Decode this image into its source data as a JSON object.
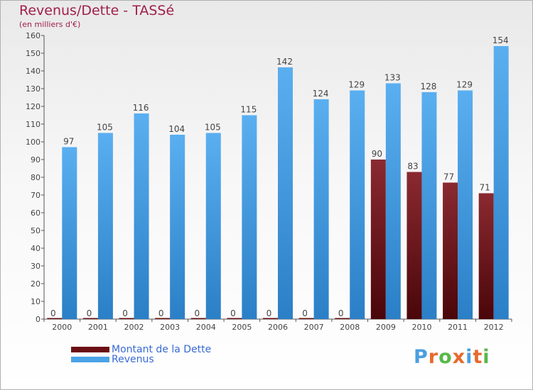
{
  "chart_data": {
    "type": "bar",
    "title": "Revenus/Dette - TASSé",
    "subtitle": "(en milliers d'€)",
    "categories": [
      "2000",
      "2001",
      "2002",
      "2003",
      "2004",
      "2005",
      "2006",
      "2007",
      "2008",
      "2009",
      "2010",
      "2011",
      "2012"
    ],
    "series": [
      {
        "name": "Montant de la Dette",
        "color": "#6b0f14",
        "values": [
          0,
          0,
          0,
          0,
          0,
          0,
          0,
          0,
          0,
          90,
          83,
          77,
          71
        ]
      },
      {
        "name": "Revenus",
        "color": "#4aa3e6",
        "values": [
          97,
          105,
          116,
          104,
          105,
          115,
          142,
          124,
          129,
          133,
          128,
          129,
          154
        ]
      }
    ],
    "ylim": [
      0,
      160
    ],
    "yticks": [
      0,
      10,
      20,
      30,
      40,
      50,
      60,
      70,
      80,
      90,
      100,
      110,
      120,
      130,
      140,
      150,
      160
    ],
    "xlabel": "",
    "ylabel": "",
    "grid": false,
    "legend_position": "bottom-left"
  },
  "brand": {
    "text": "Proxiti",
    "letter_colors": [
      "#4a9fe0",
      "#e8692c",
      "#58b848",
      "#e8692c",
      "#4a9fe0",
      "#e8692c",
      "#58b848"
    ]
  }
}
